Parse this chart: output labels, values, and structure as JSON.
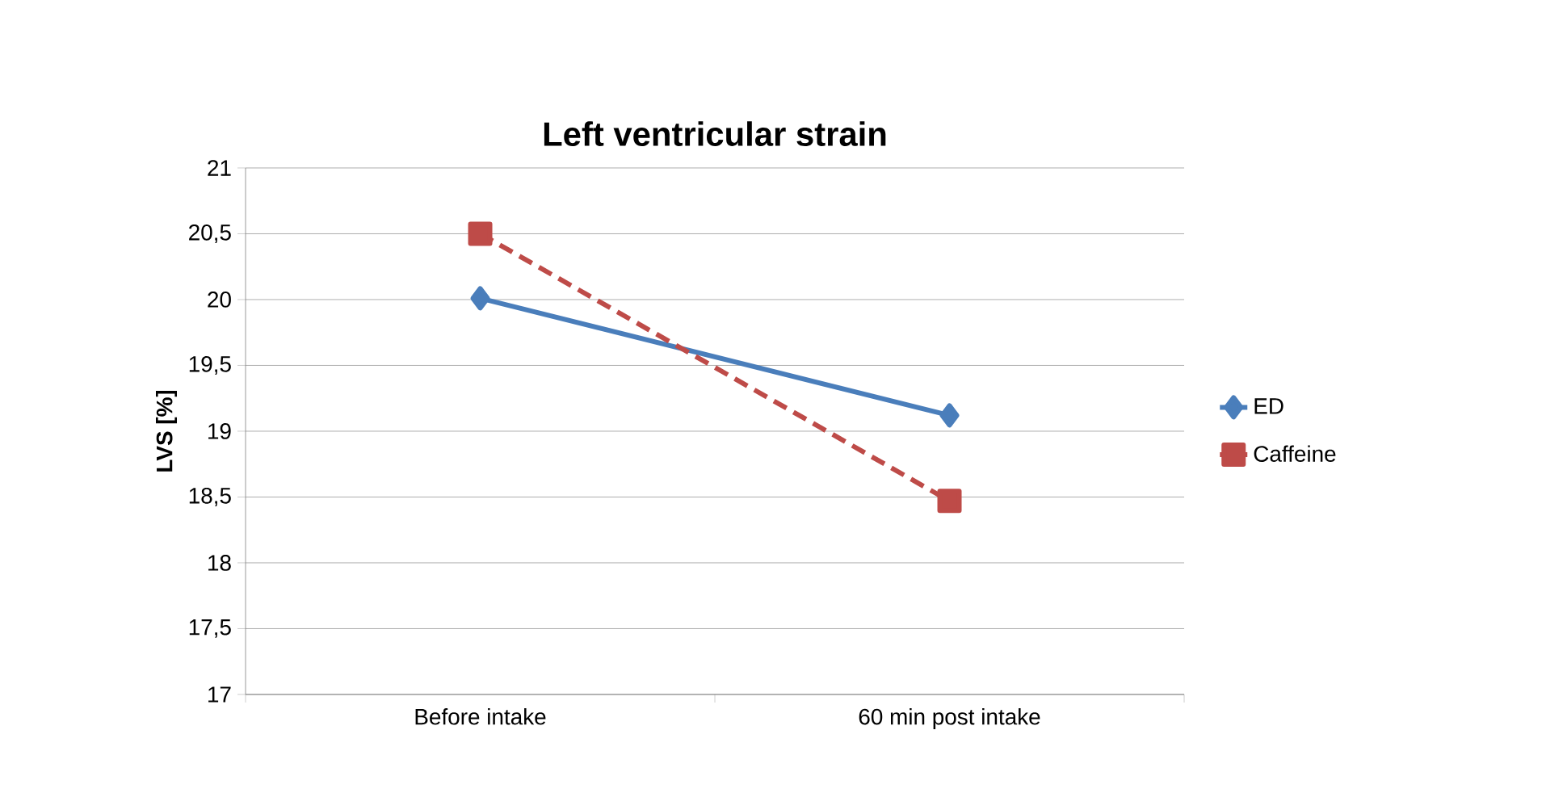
{
  "chart_data": {
    "type": "line",
    "title": "Left  ventricular strain",
    "ylabel": "LVS [%]",
    "categories": [
      "Before intake",
      "60 min post intake"
    ],
    "series": [
      {
        "name": "ED",
        "color": "#4a7ebb",
        "values": [
          20.01,
          19.12
        ],
        "marker": "diamond",
        "line_style": "solid"
      },
      {
        "name": "Caffeine",
        "color": "#be4b48",
        "values": [
          20.5,
          18.47
        ],
        "marker": "square",
        "line_style": "dashed"
      }
    ],
    "ylim": [
      17,
      21
    ],
    "yticks": [
      17,
      {
        "value": 17.5,
        "label": "17,5"
      },
      18,
      {
        "value": 18.5,
        "label": "18,5"
      },
      19,
      {
        "value": 19.5,
        "label": "19,5"
      },
      20,
      {
        "value": 20.5,
        "label": "20,5"
      },
      21
    ],
    "grid": "y",
    "legend": "right"
  }
}
